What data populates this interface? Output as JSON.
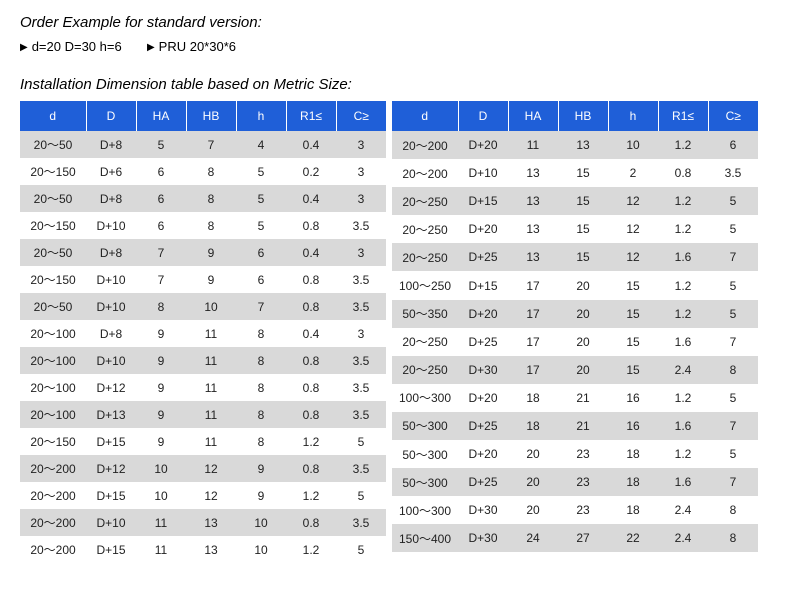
{
  "heading1": "Order Example for standard version:",
  "example1": "d=20 D=30 h=6",
  "example2": "PRU 20*30*6",
  "heading2": "Installation Dimension table based on Metric Size:",
  "cols": [
    "d",
    "D",
    "HA",
    "HB",
    "h",
    "R1≤",
    "C≥"
  ],
  "left": [
    [
      "20～50",
      "D+8",
      "5",
      "7",
      "4",
      "0.4",
      "3"
    ],
    [
      "20～150",
      "D+6",
      "6",
      "8",
      "5",
      "0.2",
      "3"
    ],
    [
      "20～50",
      "D+8",
      "6",
      "8",
      "5",
      "0.4",
      "3"
    ],
    [
      "20～150",
      "D+10",
      "6",
      "8",
      "5",
      "0.8",
      "3.5"
    ],
    [
      "20～50",
      "D+8",
      "7",
      "9",
      "6",
      "0.4",
      "3"
    ],
    [
      "20～150",
      "D+10",
      "7",
      "9",
      "6",
      "0.8",
      "3.5"
    ],
    [
      "20～50",
      "D+10",
      "8",
      "10",
      "7",
      "0.8",
      "3.5"
    ],
    [
      "20～100",
      "D+8",
      "9",
      "11",
      "8",
      "0.4",
      "3"
    ],
    [
      "20～100",
      "D+10",
      "9",
      "11",
      "8",
      "0.8",
      "3.5"
    ],
    [
      "20～100",
      "D+12",
      "9",
      "11",
      "8",
      "0.8",
      "3.5"
    ],
    [
      "20～100",
      "D+13",
      "9",
      "11",
      "8",
      "0.8",
      "3.5"
    ],
    [
      "20～150",
      "D+15",
      "9",
      "11",
      "8",
      "1.2",
      "5"
    ],
    [
      "20～200",
      "D+12",
      "10",
      "12",
      "9",
      "0.8",
      "3.5"
    ],
    [
      "20～200",
      "D+15",
      "10",
      "12",
      "9",
      "1.2",
      "5"
    ],
    [
      "20～200",
      "D+10",
      "11",
      "13",
      "10",
      "0.8",
      "3.5"
    ],
    [
      "20～200",
      "D+15",
      "11",
      "13",
      "10",
      "1.2",
      "5"
    ]
  ],
  "right": [
    [
      "20～200",
      "D+20",
      "11",
      "13",
      "10",
      "1.2",
      "6"
    ],
    [
      "20～200",
      "D+10",
      "13",
      "15",
      "2",
      "0.8",
      "3.5"
    ],
    [
      "20～250",
      "D+15",
      "13",
      "15",
      "12",
      "1.2",
      "5"
    ],
    [
      "20～250",
      "D+20",
      "13",
      "15",
      "12",
      "1.2",
      "5"
    ],
    [
      "20～250",
      "D+25",
      "13",
      "15",
      "12",
      "1.6",
      "7"
    ],
    [
      "100～250",
      "D+15",
      "17",
      "20",
      "15",
      "1.2",
      "5"
    ],
    [
      "50～350",
      "D+20",
      "17",
      "20",
      "15",
      "1.2",
      "5"
    ],
    [
      "20～250",
      "D+25",
      "17",
      "20",
      "15",
      "1.6",
      "7"
    ],
    [
      "20～250",
      "D+30",
      "17",
      "20",
      "15",
      "2.4",
      "8"
    ],
    [
      "100～300",
      "D+20",
      "18",
      "21",
      "16",
      "1.2",
      "5"
    ],
    [
      "50～300",
      "D+25",
      "18",
      "21",
      "16",
      "1.6",
      "7"
    ],
    [
      "50～300",
      "D+20",
      "20",
      "23",
      "18",
      "1.2",
      "5"
    ],
    [
      "50～300",
      "D+25",
      "20",
      "23",
      "18",
      "1.6",
      "7"
    ],
    [
      "100～300",
      "D+30",
      "20",
      "23",
      "18",
      "2.4",
      "8"
    ],
    [
      "150～400",
      "D+30",
      "24",
      "27",
      "22",
      "2.4",
      "8"
    ],
    [
      "",
      "",
      "",
      "",
      "",
      "",
      ""
    ]
  ]
}
